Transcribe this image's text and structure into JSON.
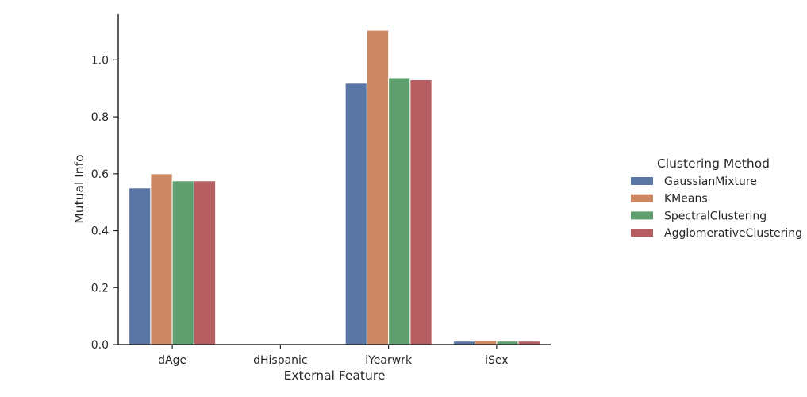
{
  "chart_data": {
    "type": "bar",
    "title": "",
    "xlabel": "External Feature",
    "ylabel": "Mutual Info",
    "categories": [
      "dAge",
      "dHispanic",
      "iYearwrk",
      "iSex"
    ],
    "ylim": [
      0,
      1.16
    ],
    "yticks": [
      "0.0",
      "0.2",
      "0.4",
      "0.6",
      "0.8",
      "1.0"
    ],
    "grid": false,
    "legend": {
      "title": "Clustering Method",
      "placement": "right"
    },
    "series": [
      {
        "name": "GaussianMixture",
        "color": "#5975a4",
        "values": [
          0.55,
          0.0,
          0.918,
          0.012
        ]
      },
      {
        "name": "KMeans",
        "color": "#cc8963",
        "values": [
          0.6,
          0.0,
          1.104,
          0.015
        ]
      },
      {
        "name": "SpectralClustering",
        "color": "#5f9e6e",
        "values": [
          0.575,
          0.0,
          0.937,
          0.012
        ]
      },
      {
        "name": "AgglomerativeClustering",
        "color": "#b55d60",
        "values": [
          0.575,
          0.0,
          0.93,
          0.012
        ]
      }
    ]
  }
}
